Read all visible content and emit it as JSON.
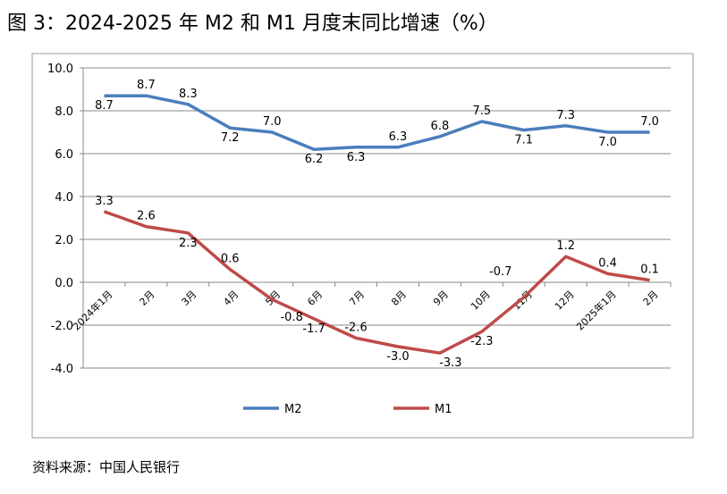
{
  "title": "图 3：2024-2025 年 M2 和 M1 月度末同比增速（%）",
  "source": "资料来源：中国人民银行",
  "chart_data": {
    "type": "line",
    "title": "",
    "categories": [
      "2024年1月",
      "2月",
      "3月",
      "4月",
      "5月",
      "6月",
      "7月",
      "8月",
      "9月",
      "10月",
      "11月",
      "12月",
      "2025年1月",
      "2月"
    ],
    "ylim": [
      -4,
      10
    ],
    "yticks": [
      "10.0",
      "8.0",
      "6.0",
      "4.0",
      "2.0",
      "0.0",
      "-2.0",
      "-4.0"
    ],
    "grid": true,
    "legend": "bottom",
    "series": [
      {
        "name": "M2",
        "color": "#4a7ebb",
        "values": [
          8.7,
          8.7,
          8.3,
          7.2,
          7.0,
          6.2,
          6.3,
          6.3,
          6.8,
          7.5,
          7.1,
          7.3,
          7.0,
          7.0
        ],
        "labels": [
          "8.7",
          "8.7",
          "8.3",
          "7.2",
          "7.0",
          "6.2",
          "6.3",
          "6.3",
          "6.8",
          "7.5",
          "7.1",
          "7.3",
          "7.0",
          "7.0"
        ]
      },
      {
        "name": "M1",
        "color": "#be4b48",
        "values": [
          3.3,
          2.6,
          2.3,
          0.6,
          -0.8,
          -1.7,
          -2.6,
          -3.0,
          -3.3,
          -2.3,
          -0.7,
          1.2,
          0.4,
          0.1
        ],
        "labels": [
          "3.3",
          "2.6",
          "2.3",
          "0.6",
          "-0.8",
          "-1.7",
          "-2.6",
          "-3.0",
          "-3.3",
          "-2.3",
          "-0.7",
          "1.2",
          "0.4",
          "0.1"
        ]
      }
    ]
  }
}
